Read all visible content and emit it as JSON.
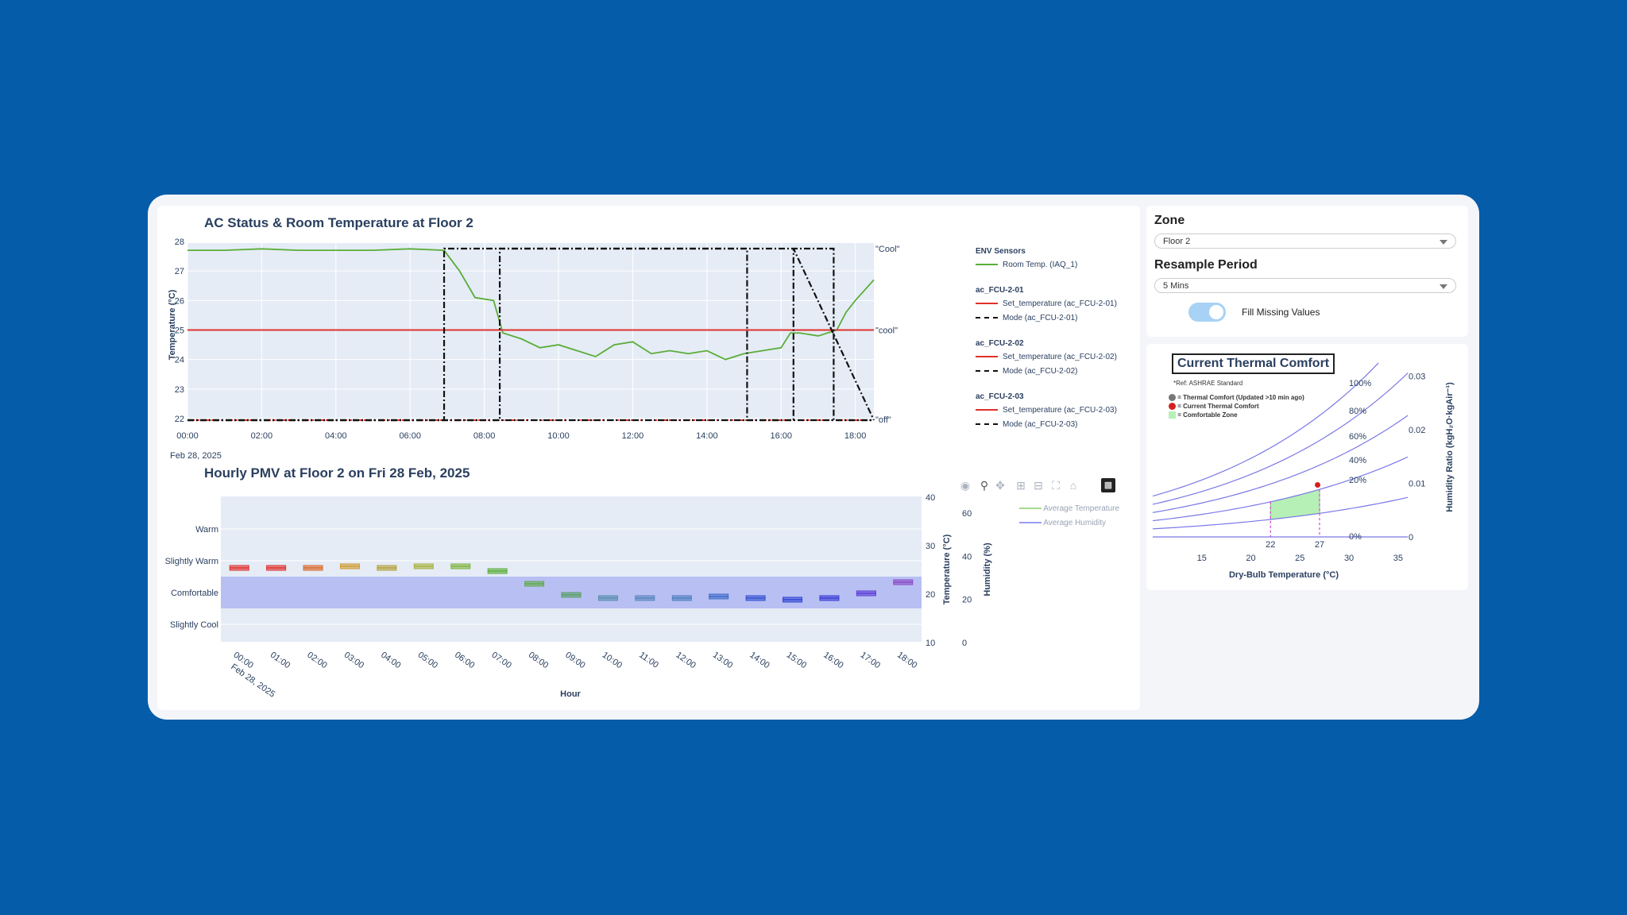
{
  "ac_chart": {
    "title": "AC Status & Room Temperature at Floor 2",
    "ylabel": "Temperature (°C)",
    "x_ticks": [
      "00:00",
      "02:00",
      "04:00",
      "06:00",
      "08:00",
      "10:00",
      "12:00",
      "14:00",
      "16:00",
      "18:00"
    ],
    "x_date_label": "Feb 28, 2025",
    "y_ticks": [
      "28",
      "27",
      "26",
      "25",
      "24",
      "23",
      "22"
    ],
    "mode_labels": {
      "cool_upper": "\"Cool\"",
      "cool_lower": "\"cool\"",
      "off": "\"off\""
    }
  },
  "legend": {
    "groups": [
      {
        "title": "ENV Sensors",
        "items": [
          "Room Temp. (IAQ_1)"
        ]
      },
      {
        "title": "ac_FCU-2-01",
        "items": [
          "Set_temperature (ac_FCU-2-01)",
          "Mode (ac_FCU-2-01)"
        ]
      },
      {
        "title": "ac_FCU-2-02",
        "items": [
          "Set_temperature (ac_FCU-2-02)",
          "Mode (ac_FCU-2-02)"
        ]
      },
      {
        "title": "ac_FCU-2-03",
        "items": [
          "Set_temperature (ac_FCU-2-03)",
          "Mode (ac_FCU-2-03)"
        ]
      }
    ]
  },
  "pmv_chart": {
    "title": "Hourly PMV at Floor 2 on Fri 28 Feb, 2025",
    "categories": [
      "Warm",
      "Slightly Warm",
      "Comfortable",
      "Slightly Cool"
    ],
    "x_ticks": [
      "00:00",
      "01:00",
      "02:00",
      "03:00",
      "04:00",
      "05:00",
      "06:00",
      "07:00",
      "08:00",
      "09:00",
      "10:00",
      "11:00",
      "12:00",
      "13:00",
      "14:00",
      "15:00",
      "16:00",
      "17:00",
      "18:00"
    ],
    "x_date_label": "Feb 28, 2025",
    "xlabel": "Hour",
    "temp_axis_label": "Temperature (°C)",
    "temp_ticks": [
      "40",
      "30",
      "20",
      "10"
    ],
    "hum_axis_label": "Humidity (%)",
    "hum_ticks": [
      "60",
      "40",
      "20",
      "0"
    ],
    "legend": [
      "Average Temperature",
      "Average Humidity"
    ]
  },
  "controls": {
    "zone_label": "Zone",
    "zone_value": "Floor 2",
    "resample_label": "Resample Period",
    "resample_value": "5 Mins",
    "fill_missing_label": "Fill Missing Values",
    "fill_missing_on": true
  },
  "thermal_comfort": {
    "title": "Current Thermal Comfort",
    "ref": "*Ref: ASHRAE Standard",
    "legend": [
      "= Thermal Comfort (Updated >10 min ago)",
      "= Current Thermal Comfort",
      "= Comfortable Zone"
    ],
    "rh_labels": [
      "100%",
      "80%",
      "60%",
      "40%",
      "20%",
      "0%"
    ],
    "x_ticks": [
      "15",
      "20",
      "25",
      "30",
      "35"
    ],
    "y_ticks": [
      "0.03",
      "0.02",
      "0.01",
      "0"
    ],
    "marker_ticks": [
      "22",
      "27"
    ],
    "xlabel": "Dry-Bulb Temperature (°C)",
    "ylabel": "Humidity Ratio (kgH₂O·kgAir⁻¹)"
  },
  "chart_data": [
    {
      "type": "line",
      "title": "AC Status & Room Temperature at Floor 2",
      "ylabel": "Temperature (°C)",
      "ylim": [
        22,
        28
      ],
      "xlim": [
        "00:00",
        "18:30"
      ],
      "series": [
        {
          "name": "Room Temp. (IAQ_1)",
          "color": "#5aad38",
          "x": [
            "00:00",
            "01:00",
            "02:00",
            "03:00",
            "04:00",
            "05:00",
            "06:00",
            "06:55",
            "07:20",
            "07:45",
            "08:15",
            "08:30",
            "09:00",
            "09:30",
            "10:00",
            "10:30",
            "11:00",
            "11:30",
            "12:00",
            "12:30",
            "13:00",
            "13:30",
            "14:00",
            "14:30",
            "15:00",
            "15:30",
            "16:00",
            "16:15",
            "16:30",
            "17:00",
            "17:30",
            "17:45",
            "18:00",
            "18:30"
          ],
          "y": [
            27.7,
            27.7,
            27.75,
            27.7,
            27.7,
            27.7,
            27.75,
            27.7,
            27.0,
            26.1,
            26.0,
            24.9,
            24.7,
            24.4,
            24.5,
            24.3,
            24.1,
            24.5,
            24.6,
            24.2,
            24.3,
            24.2,
            24.3,
            24.0,
            24.2,
            24.3,
            24.4,
            24.9,
            24.9,
            24.8,
            25.0,
            25.6,
            26.0,
            26.7
          ]
        },
        {
          "name": "Set_temperature (ac_FCU-2-01)",
          "color": "#e0302a",
          "x": [
            "00:00",
            "18:30"
          ],
          "y": [
            25,
            25
          ]
        },
        {
          "name": "Mode (ac_FCU-2-01)",
          "color": "#111111",
          "x": [
            "00:00",
            "06:55",
            "06:55",
            "17:25",
            "17:25",
            "18:30"
          ],
          "y": [
            "off",
            "off",
            "Cool",
            "Cool",
            "off",
            "off"
          ]
        },
        {
          "name": "Mode (ac_FCU-2-02)",
          "color": "#111111",
          "x": [
            "00:00",
            "08:25",
            "08:25",
            "15:05",
            "15:05",
            "18:30"
          ],
          "y": [
            "off",
            "off",
            "Cool",
            "Cool",
            "off",
            "off"
          ]
        },
        {
          "name": "Mode (ac_FCU-2-03)",
          "color": "#111111",
          "x": [
            "00:00",
            "16:20",
            "16:20",
            "18:30"
          ],
          "y": [
            "off",
            "off",
            "Cool",
            "off"
          ]
        }
      ]
    },
    {
      "type": "box",
      "title": "Hourly PMV at Floor 2 on Fri 28 Feb, 2025",
      "xlabel": "Hour",
      "categories": [
        "00:00",
        "01:00",
        "02:00",
        "03:00",
        "04:00",
        "05:00",
        "06:00",
        "07:00",
        "08:00",
        "09:00",
        "10:00",
        "11:00",
        "12:00",
        "13:00",
        "14:00",
        "15:00",
        "16:00",
        "17:00",
        "18:00"
      ],
      "y_categories": [
        "Slightly Cool",
        "Comfortable",
        "Slightly Warm",
        "Warm"
      ],
      "pmv_median": [
        1.3,
        1.3,
        1.3,
        1.35,
        1.3,
        1.35,
        1.35,
        1.2,
        0.8,
        0.45,
        0.35,
        0.35,
        0.35,
        0.4,
        0.35,
        0.3,
        0.35,
        0.5,
        0.85
      ],
      "box_colors": [
        "#e0302a",
        "#e0302a",
        "#d9692a",
        "#cf9d32",
        "#b5a23c",
        "#a8b03e",
        "#7fb540",
        "#5aad38",
        "#62aa50",
        "#5a9e66",
        "#5b8fb0",
        "#5a86bf",
        "#4f7fbf",
        "#3f6cc9",
        "#3552cf",
        "#3246d3",
        "#3a3cd6",
        "#5a3cd6",
        "#8a4bc4"
      ],
      "comfort_band": [
        "Comfortable"
      ]
    },
    {
      "type": "scatter",
      "title": "Current Thermal Comfort",
      "xlabel": "Dry-Bulb Temperature (°C)",
      "ylabel": "Humidity Ratio (kgH₂O·kgAir⁻¹)",
      "xlim": [
        10,
        36
      ],
      "ylim": [
        0,
        0.04
      ],
      "rh_curves": [
        100,
        80,
        60,
        40,
        20,
        0
      ],
      "comfort_zone_x": [
        22,
        27
      ],
      "current_point": {
        "x": 26.8,
        "y": 0.0097
      }
    }
  ]
}
